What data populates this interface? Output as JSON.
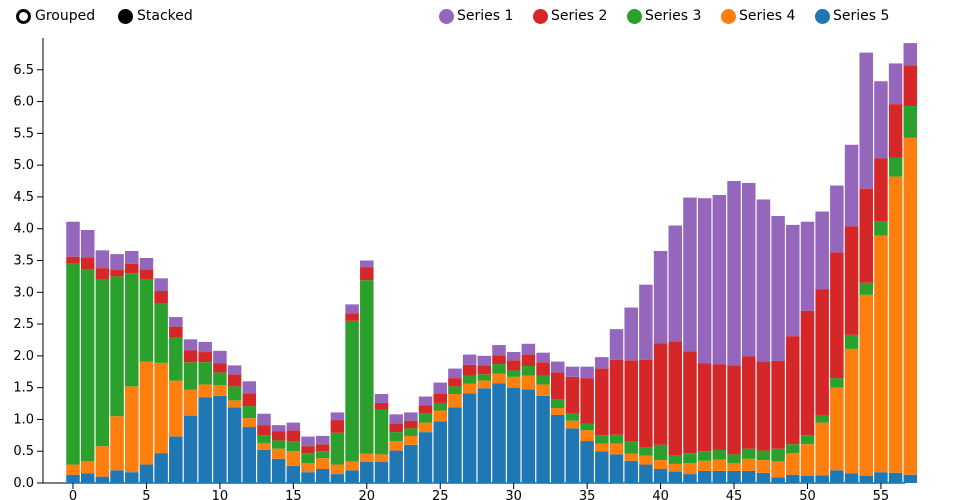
{
  "controls": {
    "grouped_label": "Grouped",
    "stacked_label": "Stacked",
    "selected": "stacked"
  },
  "colors": {
    "Series 1": "#9467bd",
    "Series 2": "#d62728",
    "Series 3": "#2ca02c",
    "Series 4": "#ff7f0e",
    "Series 5": "#1f77b4"
  },
  "chart_data": {
    "type": "bar",
    "stacked": true,
    "x": [
      0,
      1,
      2,
      3,
      4,
      5,
      6,
      7,
      8,
      9,
      10,
      11,
      12,
      13,
      14,
      15,
      16,
      17,
      18,
      19,
      20,
      21,
      22,
      23,
      24,
      25,
      26,
      27,
      28,
      29,
      30,
      31,
      32,
      33,
      34,
      35,
      36,
      37,
      38,
      39,
      40,
      41,
      42,
      43,
      44,
      45,
      46,
      47,
      48,
      49,
      50,
      51,
      52,
      53,
      54,
      55,
      56,
      57
    ],
    "x_ticks": [
      0,
      5,
      10,
      15,
      20,
      25,
      30,
      35,
      40,
      45,
      50,
      55
    ],
    "ylim": [
      0,
      7.0
    ],
    "y_ticks": [
      0.0,
      0.5,
      1.0,
      1.5,
      2.0,
      2.5,
      3.0,
      3.5,
      4.0,
      4.5,
      5.0,
      5.5,
      6.0,
      6.5
    ],
    "legend_position": "top-right",
    "stack_order": [
      "Series 5",
      "Series 4",
      "Series 3",
      "Series 2",
      "Series 1"
    ],
    "legend_order": [
      "Series 1",
      "Series 2",
      "Series 3",
      "Series 4",
      "Series 5"
    ],
    "series": [
      {
        "name": "Series 5",
        "values": [
          0.13,
          0.15,
          0.1,
          0.2,
          0.17,
          0.29,
          0.47,
          0.73,
          1.06,
          1.35,
          1.37,
          1.19,
          0.88,
          0.52,
          0.38,
          0.27,
          0.17,
          0.22,
          0.14,
          0.2,
          0.33,
          0.33,
          0.51,
          0.6,
          0.8,
          0.97,
          1.19,
          1.41,
          1.49,
          1.57,
          1.5,
          1.47,
          1.37,
          1.07,
          0.86,
          0.66,
          0.5,
          0.45,
          0.35,
          0.29,
          0.22,
          0.18,
          0.14,
          0.19,
          0.19,
          0.19,
          0.19,
          0.16,
          0.09,
          0.13,
          0.11,
          0.12,
          0.2,
          0.15,
          0.11,
          0.17,
          0.16,
          0.13
        ]
      },
      {
        "name": "Series 4",
        "values": [
          0.16,
          0.19,
          0.48,
          0.85,
          1.35,
          1.62,
          1.42,
          0.88,
          0.41,
          0.2,
          0.17,
          0.11,
          0.14,
          0.11,
          0.16,
          0.23,
          0.14,
          0.17,
          0.15,
          0.14,
          0.13,
          0.12,
          0.15,
          0.14,
          0.15,
          0.17,
          0.21,
          0.15,
          0.12,
          0.15,
          0.17,
          0.22,
          0.18,
          0.11,
          0.12,
          0.17,
          0.12,
          0.17,
          0.11,
          0.14,
          0.14,
          0.12,
          0.17,
          0.16,
          0.18,
          0.12,
          0.19,
          0.2,
          0.25,
          0.34,
          0.5,
          0.83,
          1.3,
          1.96,
          2.85,
          3.72,
          4.66,
          5.3
        ]
      },
      {
        "name": "Series 3",
        "values": [
          3.16,
          3.02,
          2.62,
          2.2,
          1.78,
          1.3,
          0.93,
          0.68,
          0.43,
          0.35,
          0.2,
          0.22,
          0.19,
          0.12,
          0.13,
          0.16,
          0.16,
          0.11,
          0.5,
          2.21,
          2.73,
          0.7,
          0.14,
          0.12,
          0.14,
          0.12,
          0.12,
          0.13,
          0.1,
          0.15,
          0.1,
          0.15,
          0.14,
          0.13,
          0.11,
          0.1,
          0.13,
          0.14,
          0.2,
          0.13,
          0.24,
          0.13,
          0.16,
          0.15,
          0.15,
          0.14,
          0.16,
          0.15,
          0.2,
          0.14,
          0.14,
          0.12,
          0.15,
          0.22,
          0.19,
          0.22,
          0.3,
          0.5
        ]
      },
      {
        "name": "Series 2",
        "values": [
          0.11,
          0.19,
          0.18,
          0.1,
          0.15,
          0.15,
          0.2,
          0.17,
          0.19,
          0.16,
          0.14,
          0.19,
          0.2,
          0.16,
          0.14,
          0.17,
          0.11,
          0.11,
          0.2,
          0.12,
          0.2,
          0.11,
          0.14,
          0.12,
          0.13,
          0.14,
          0.13,
          0.17,
          0.14,
          0.14,
          0.16,
          0.18,
          0.21,
          0.43,
          0.58,
          0.72,
          1.05,
          1.18,
          1.27,
          1.38,
          1.6,
          1.8,
          1.6,
          1.38,
          1.35,
          1.4,
          1.45,
          1.4,
          1.38,
          1.7,
          1.96,
          1.98,
          1.98,
          1.71,
          1.48,
          1.0,
          0.84,
          0.64
        ]
      },
      {
        "name": "Series 1",
        "values": [
          0.55,
          0.43,
          0.28,
          0.25,
          0.2,
          0.18,
          0.2,
          0.15,
          0.17,
          0.16,
          0.2,
          0.14,
          0.19,
          0.18,
          0.1,
          0.12,
          0.15,
          0.13,
          0.12,
          0.14,
          0.11,
          0.14,
          0.14,
          0.13,
          0.14,
          0.18,
          0.15,
          0.16,
          0.15,
          0.16,
          0.13,
          0.17,
          0.15,
          0.17,
          0.16,
          0.18,
          0.18,
          0.48,
          0.83,
          1.18,
          1.45,
          1.82,
          2.42,
          2.6,
          2.66,
          2.9,
          2.73,
          2.55,
          2.28,
          1.75,
          1.4,
          1.22,
          1.05,
          1.28,
          2.14,
          1.21,
          0.64,
          0.35
        ]
      }
    ]
  }
}
